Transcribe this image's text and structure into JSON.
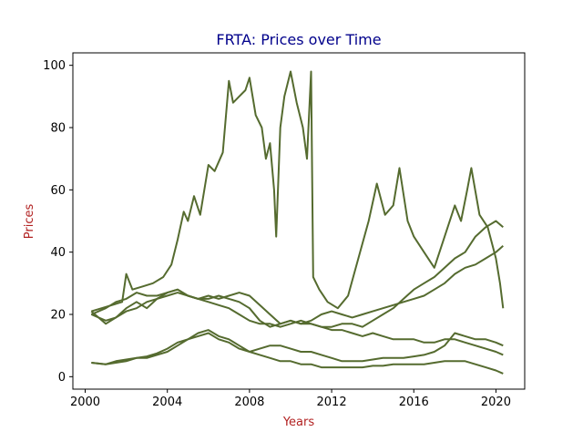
{
  "chart_data": {
    "type": "line",
    "title": "FRTA: Prices over Time",
    "xlabel": "Years",
    "ylabel": "Prices",
    "xlim": [
      1999.4,
      2021.4
    ],
    "ylim": [
      -4,
      104
    ],
    "xticks": [
      2000,
      2004,
      2008,
      2012,
      2016,
      2020
    ],
    "yticks": [
      0,
      20,
      40,
      60,
      80,
      100
    ],
    "grid": false,
    "legend": "none",
    "colors": {
      "line": "#556b2f",
      "title": "#00008b",
      "axis_label": "#b22222",
      "frame": "#000000"
    },
    "series": [
      {
        "x": [
          2000.3,
          2000.8,
          2001.3,
          2001.8,
          2002.0,
          2002.3,
          2002.8,
          2003.3,
          2003.8,
          2004.2,
          2004.5,
          2004.8,
          2005.0,
          2005.3,
          2005.6,
          2006.0,
          2006.3,
          2006.7,
          2007.0,
          2007.2,
          2007.5,
          2007.8,
          2008.0,
          2008.3,
          2008.6,
          2008.8,
          2009.0,
          2009.2,
          2009.3,
          2009.5,
          2009.7,
          2010.0,
          2010.3,
          2010.6,
          2010.8,
          2011.0,
          2011.1,
          2011.4,
          2011.8,
          2012.3,
          2012.8,
          2013.3,
          2013.8,
          2014.2,
          2014.6,
          2015.0,
          2015.3,
          2015.7,
          2016.0,
          2016.5,
          2017.0,
          2017.5,
          2018.0,
          2018.3,
          2018.6,
          2018.8,
          2019.2,
          2019.6,
          2020.0,
          2020.2,
          2020.35
        ],
        "y": [
          21,
          22,
          23,
          24,
          33,
          28,
          29,
          30,
          32,
          36,
          44,
          53,
          50,
          58,
          52,
          68,
          66,
          72,
          95,
          88,
          90,
          92,
          96,
          84,
          80,
          70,
          75,
          60,
          45,
          80,
          90,
          98,
          88,
          80,
          70,
          98,
          32,
          28,
          24,
          22,
          26,
          38,
          50,
          62,
          52,
          55,
          67,
          50,
          45,
          40,
          35,
          45,
          55,
          50,
          60,
          67,
          52,
          48,
          38,
          30,
          22
        ]
      },
      {
        "x": [
          2000.3,
          2001.0,
          2001.5,
          2002.0,
          2002.5,
          2003.0,
          2003.5,
          2004.0,
          2004.5,
          2005.0,
          2005.5,
          2006.0,
          2006.5,
          2007.0,
          2007.5,
          2008.0,
          2008.5,
          2009.0,
          2009.5,
          2010.0,
          2010.5,
          2011.0,
          2011.5,
          2012.0,
          2012.5,
          2013.0,
          2013.5,
          2014.0,
          2014.5,
          2015.0,
          2015.5,
          2016.0,
          2016.5,
          2017.0,
          2017.5,
          2018.0,
          2018.5,
          2019.0,
          2019.5,
          2020.0,
          2020.35
        ],
        "y": [
          20,
          22,
          24,
          25,
          27,
          26,
          26,
          27,
          28,
          26,
          25,
          26,
          25,
          26,
          27,
          26,
          23,
          20,
          17,
          18,
          17,
          17,
          16,
          15,
          15,
          14,
          13,
          14,
          13,
          12,
          12,
          12,
          11,
          11,
          12,
          12,
          11,
          10,
          9,
          8,
          7
        ]
      },
      {
        "x": [
          2000.3,
          2001.0,
          2001.5,
          2002.0,
          2002.5,
          2003.0,
          2003.5,
          2004.0,
          2004.5,
          2005.0,
          2005.5,
          2006.0,
          2006.5,
          2007.0,
          2007.5,
          2008.0,
          2008.5,
          2009.0,
          2009.5,
          2010.0,
          2010.5,
          2011.0,
          2011.5,
          2012.0,
          2012.5,
          2013.0,
          2013.5,
          2014.0,
          2014.5,
          2015.0,
          2015.5,
          2016.0,
          2016.5,
          2017.0,
          2017.5,
          2018.0,
          2018.5,
          2019.0,
          2019.5,
          2020.0,
          2020.35
        ],
        "y": [
          20,
          18,
          19,
          21,
          22,
          24,
          25,
          26,
          27,
          26,
          25,
          25,
          26,
          25,
          24,
          22,
          18,
          16,
          17,
          18,
          17,
          18,
          20,
          21,
          20,
          19,
          20,
          21,
          22,
          23,
          24,
          25,
          26,
          28,
          30,
          33,
          35,
          36,
          38,
          40,
          42
        ]
      },
      {
        "x": [
          2000.3,
          2001.0,
          2001.5,
          2002.0,
          2002.5,
          2003.0,
          2003.5,
          2004.0,
          2004.5,
          2005.0,
          2005.5,
          2006.0,
          2006.5,
          2007.0,
          2007.5,
          2008.0,
          2008.5,
          2009.0,
          2009.5,
          2010.0,
          2010.5,
          2011.0,
          2011.5,
          2012.0,
          2012.5,
          2013.0,
          2013.5,
          2014.0,
          2014.5,
          2015.0,
          2015.5,
          2016.0,
          2016.5,
          2017.0,
          2017.5,
          2018.0,
          2018.5,
          2019.0,
          2019.5,
          2020.0,
          2020.35
        ],
        "y": [
          21,
          17,
          19,
          22,
          24,
          22,
          25,
          27,
          28,
          26,
          25,
          24,
          23,
          22,
          20,
          18,
          17,
          17,
          16,
          17,
          18,
          17,
          16,
          16,
          17,
          17,
          16,
          18,
          20,
          22,
          25,
          28,
          30,
          32,
          35,
          38,
          40,
          45,
          48,
          50,
          48
        ]
      },
      {
        "x": [
          2000.3,
          2001.0,
          2001.5,
          2002.0,
          2002.5,
          2003.0,
          2003.5,
          2004.0,
          2004.5,
          2005.0,
          2005.5,
          2006.0,
          2006.5,
          2007.0,
          2007.5,
          2008.0,
          2008.5,
          2009.0,
          2009.5,
          2010.0,
          2010.5,
          2011.0,
          2011.5,
          2012.0,
          2012.5,
          2013.0,
          2013.5,
          2014.0,
          2014.5,
          2015.0,
          2015.5,
          2016.0,
          2016.5,
          2017.0,
          2017.5,
          2018.0,
          2018.5,
          2019.0,
          2019.5,
          2020.0,
          2020.35
        ],
        "y": [
          4.5,
          4,
          4.5,
          5,
          6,
          6,
          7,
          8,
          10,
          12,
          14,
          15,
          13,
          12,
          10,
          8,
          7,
          6,
          5,
          5,
          4,
          4,
          3,
          3,
          3,
          3,
          3,
          3.5,
          3.5,
          4,
          4,
          4,
          4,
          4.5,
          5,
          5,
          5,
          4,
          3,
          2,
          1
        ]
      },
      {
        "x": [
          2000.3,
          2001.0,
          2001.5,
          2002.0,
          2002.5,
          2003.0,
          2003.5,
          2004.0,
          2004.5,
          2005.0,
          2005.5,
          2006.0,
          2006.5,
          2007.0,
          2007.5,
          2008.0,
          2008.5,
          2009.0,
          2009.5,
          2010.0,
          2010.5,
          2011.0,
          2011.5,
          2012.0,
          2012.5,
          2013.0,
          2013.5,
          2014.0,
          2014.5,
          2015.0,
          2015.5,
          2016.0,
          2016.5,
          2017.0,
          2017.5,
          2018.0,
          2018.5,
          2019.0,
          2019.5,
          2020.0,
          2020.35
        ],
        "y": [
          4.5,
          4,
          5,
          5.5,
          6,
          6.5,
          7.5,
          9,
          11,
          12,
          13,
          14,
          12,
          11,
          9,
          8,
          9,
          10,
          10,
          9,
          8,
          8,
          7,
          6,
          5,
          5,
          5,
          5.5,
          6,
          6,
          6,
          6.5,
          7,
          8,
          10,
          14,
          13,
          12,
          12,
          11,
          10
        ]
      }
    ]
  }
}
